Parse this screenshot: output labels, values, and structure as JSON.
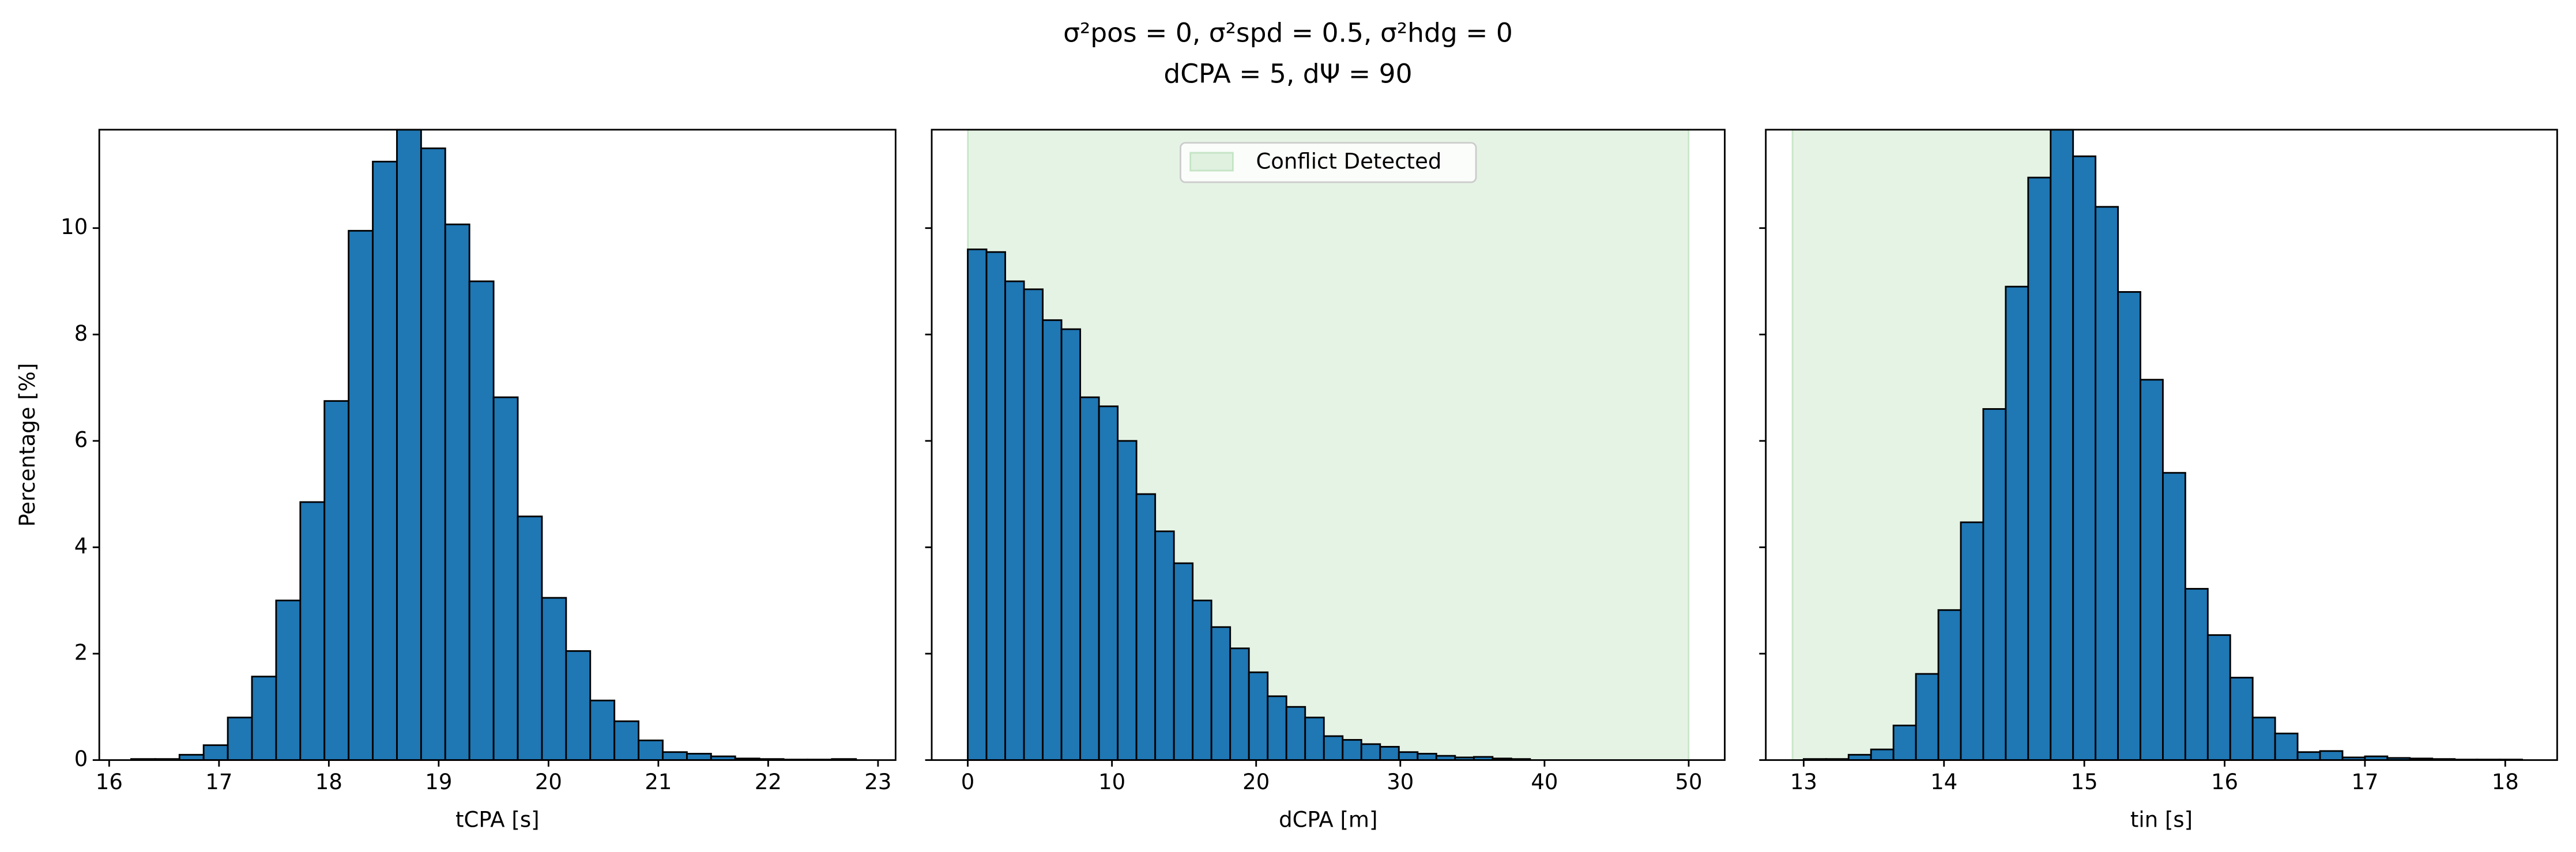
{
  "title_lines": [
    "σ²pos = 0, σ²spd = 0.5, σ²hdg = 0",
    "dCPA = 5, dΨ = 90"
  ],
  "chart_data": [
    {
      "type": "histogram",
      "xlabel": "tCPA [s]",
      "ylabel": "Percentage [%]",
      "color": "#1f77b4",
      "bins": [
        16.2,
        16.42,
        16.64,
        16.86,
        17.08,
        17.3,
        17.52,
        17.74,
        17.96,
        18.18,
        18.4,
        18.62,
        18.84,
        19.06,
        19.28,
        19.5,
        19.72,
        19.94,
        20.16,
        20.38,
        20.6,
        20.82,
        21.04,
        21.26,
        21.48,
        21.7,
        21.92,
        22.14,
        22.36,
        22.58,
        22.8
      ],
      "counts": [
        0.02,
        0.02,
        0.1,
        0.28,
        0.8,
        1.57,
        3.0,
        4.85,
        6.75,
        9.95,
        11.25,
        11.85,
        11.5,
        10.07,
        9.0,
        6.82,
        4.58,
        3.05,
        2.05,
        1.12,
        0.73,
        0.37,
        0.15,
        0.12,
        0.07,
        0.03,
        0.02,
        0.01,
        0.01,
        0.02
      ],
      "xlim": [
        15.91,
        23.16
      ],
      "xticks": [
        16,
        17,
        18,
        19,
        20,
        21,
        22,
        23
      ],
      "ylim": [
        0,
        11.85
      ],
      "yticks": [
        0,
        2,
        4,
        6,
        8,
        10
      ]
    },
    {
      "type": "histogram",
      "xlabel": "dCPA [m]",
      "color": "#1f77b4",
      "bins": [
        0,
        1.3,
        2.6,
        3.9,
        5.2,
        6.5,
        7.8,
        9.1,
        10.4,
        11.7,
        13,
        14.3,
        15.6,
        16.9,
        18.2,
        19.5,
        20.8,
        22.1,
        23.4,
        24.7,
        26,
        27.3,
        28.6,
        29.9,
        31.2,
        32.5,
        33.8,
        35.1,
        36.4,
        37.7,
        39
      ],
      "counts": [
        9.6,
        9.55,
        9.0,
        8.85,
        8.27,
        8.1,
        6.82,
        6.65,
        6.0,
        5.0,
        4.3,
        3.7,
        3.0,
        2.5,
        2.1,
        1.65,
        1.2,
        1.0,
        0.8,
        0.45,
        0.38,
        0.3,
        0.25,
        0.15,
        0.12,
        0.08,
        0.05,
        0.06,
        0.03,
        0.02
      ],
      "span": {
        "x0": 0,
        "x1": 50,
        "color": "#2ca02c",
        "label": "Conflict Detected"
      },
      "legend": "upper center",
      "xlim": [
        -2.5,
        52.5
      ],
      "xticks": [
        0,
        10,
        20,
        30,
        40,
        50
      ],
      "ylim": [
        0,
        11.85
      ],
      "yticks": [
        0,
        2,
        4,
        6,
        8,
        10
      ]
    },
    {
      "type": "histogram",
      "xlabel": "tin [s]",
      "color": "#1f77b4",
      "bins": [
        13,
        13.16,
        13.32,
        13.48,
        13.64,
        13.8,
        13.96,
        14.12,
        14.28,
        14.44,
        14.6,
        14.76,
        14.92,
        15.08,
        15.24,
        15.4,
        15.56,
        15.72,
        15.88,
        16.04,
        16.2,
        16.36,
        16.52,
        16.68,
        16.84,
        17,
        17.16,
        17.32,
        17.48,
        17.64,
        17.8,
        17.96,
        18.12
      ],
      "counts": [
        0.02,
        0.02,
        0.1,
        0.2,
        0.65,
        1.62,
        2.82,
        4.47,
        6.6,
        8.9,
        10.95,
        11.85,
        11.35,
        10.4,
        8.8,
        7.15,
        5.4,
        3.22,
        2.35,
        1.55,
        0.8,
        0.5,
        0.15,
        0.17,
        0.05,
        0.07,
        0.04,
        0.03,
        0.02,
        0.01,
        0.01,
        0.01
      ],
      "span": {
        "x0": 12.92,
        "x1": 14.9,
        "color": "#2ca02c"
      },
      "xlim": [
        12.73,
        18.37
      ],
      "xticks": [
        13,
        14,
        15,
        16,
        17,
        18
      ],
      "ylim": [
        0,
        11.85
      ],
      "yticks": [
        0,
        2,
        4,
        6,
        8,
        10
      ]
    }
  ]
}
